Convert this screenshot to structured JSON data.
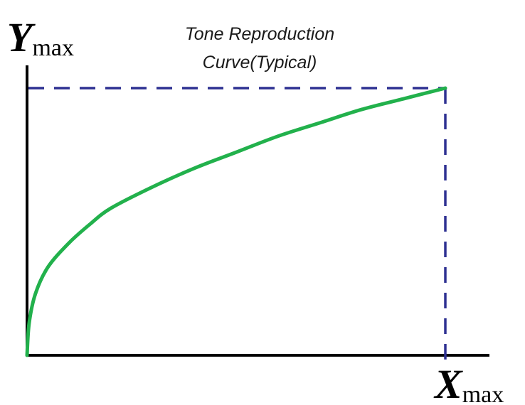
{
  "chart_data": {
    "type": "line",
    "title_lines": [
      "Tone Reproduction",
      "Curve(Typical)"
    ],
    "x_label": {
      "letter": "X",
      "subscript": "max"
    },
    "y_label": {
      "letter": "Y",
      "subscript": "max"
    },
    "xlim": [
      0,
      1
    ],
    "ylim": [
      0,
      1
    ],
    "grid": false,
    "series": [
      {
        "points": [
          [
            0,
            0
          ],
          [
            0.005,
            0.12
          ],
          [
            0.02,
            0.23
          ],
          [
            0.05,
            0.33
          ],
          [
            0.1,
            0.42
          ],
          [
            0.15,
            0.49
          ],
          [
            0.2,
            0.55
          ],
          [
            0.3,
            0.63
          ],
          [
            0.4,
            0.7
          ],
          [
            0.5,
            0.76
          ],
          [
            0.6,
            0.82
          ],
          [
            0.7,
            0.87
          ],
          [
            0.8,
            0.92
          ],
          [
            0.9,
            0.96
          ],
          [
            1.0,
            1.0
          ]
        ]
      }
    ],
    "guides": {
      "x": 1,
      "y": 1
    },
    "colors": {
      "curve": "#22b14c",
      "guide": "#2e3192",
      "axis": "#000000"
    }
  }
}
